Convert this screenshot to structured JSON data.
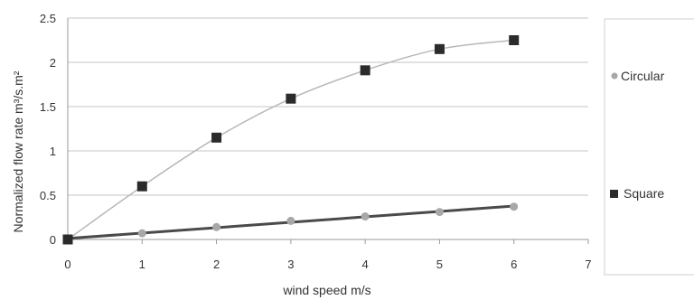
{
  "chart_data": {
    "type": "scatter",
    "title": "",
    "xlabel": "wind speed  m/s",
    "ylabel": "Normalized flow rate m³/s.m²",
    "xlim": [
      0,
      7
    ],
    "ylim": [
      0,
      2.5
    ],
    "xticks": [
      "0",
      "1",
      "2",
      "3",
      "4",
      "5",
      "6",
      "7"
    ],
    "yticks": [
      "0",
      "0.5",
      "1",
      "1.5",
      "2",
      "2.5"
    ],
    "grid": "horizontal",
    "legend_position": "right",
    "series": [
      {
        "name": "Circular",
        "marker": "circle",
        "color": "#a8a8a8",
        "line_color": "#4a4a4a",
        "trend": "linear",
        "x": [
          0,
          1,
          2,
          3,
          4,
          5,
          6
        ],
        "y": [
          0,
          0.07,
          0.14,
          0.21,
          0.26,
          0.31,
          0.37
        ]
      },
      {
        "name": "Square",
        "marker": "square",
        "color": "#2b2b2b",
        "line_color": "#b8b8b8",
        "trend": "curve",
        "x": [
          0,
          1,
          2,
          3,
          4,
          5,
          6
        ],
        "y": [
          0,
          0.6,
          1.15,
          1.59,
          1.91,
          2.15,
          2.25
        ]
      }
    ]
  }
}
